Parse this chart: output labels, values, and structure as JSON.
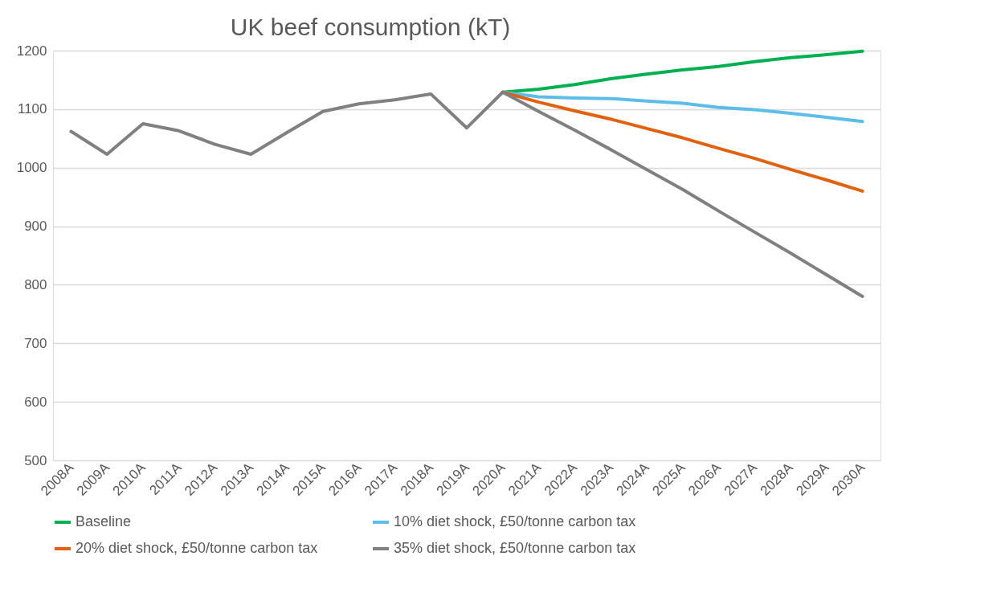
{
  "chart_data": {
    "type": "line",
    "title": "UK beef consumption (kT)",
    "categories": [
      "2008A",
      "2009A",
      "2010A",
      "2011A",
      "2012A",
      "2013A",
      "2014A",
      "2015A",
      "2016A",
      "2017A",
      "2018A",
      "2019A",
      "2020A",
      "2021A",
      "2022A",
      "2023A",
      "2024A",
      "2025A",
      "2026A",
      "2027A",
      "2028A",
      "2029A",
      "2030A"
    ],
    "series": [
      {
        "name": "Baseline",
        "color": "#00b050",
        "values": [
          null,
          null,
          null,
          null,
          null,
          null,
          null,
          null,
          null,
          null,
          null,
          null,
          1129,
          1134,
          1142,
          1152,
          1160,
          1167,
          1173,
          1181,
          1188,
          1193,
          1199
        ]
      },
      {
        "name": "10% diet shock, £50/tonne carbon tax",
        "color": "#5bbde8",
        "values": [
          null,
          null,
          null,
          null,
          null,
          null,
          null,
          null,
          null,
          null,
          null,
          null,
          1129,
          1121,
          1119,
          1118,
          1114,
          1110,
          1103,
          1099,
          1093,
          1086,
          1079
        ]
      },
      {
        "name": "20% diet shock, £50/tonne carbon tax",
        "color": "#e0620f",
        "values": [
          null,
          null,
          null,
          null,
          null,
          null,
          null,
          null,
          null,
          null,
          null,
          null,
          1129,
          1112,
          1097,
          1083,
          1067,
          1051,
          1033,
          1016,
          997,
          979,
          960
        ]
      },
      {
        "name": "35% diet shock, £50/tonne carbon tax",
        "color": "#808080",
        "values": [
          1062,
          1023,
          1075,
          1063,
          1040,
          1023,
          1060,
          1096,
          1109,
          1116,
          1126,
          1068,
          1129,
          1096,
          1064,
          1031,
          997,
          963,
          926,
          890,
          854,
          817,
          780
        ]
      }
    ],
    "ylim": [
      500,
      1200
    ],
    "yticks": [
      500,
      600,
      700,
      800,
      900,
      1000,
      1100,
      1200
    ],
    "grid": "y",
    "legend": "bottom"
  }
}
